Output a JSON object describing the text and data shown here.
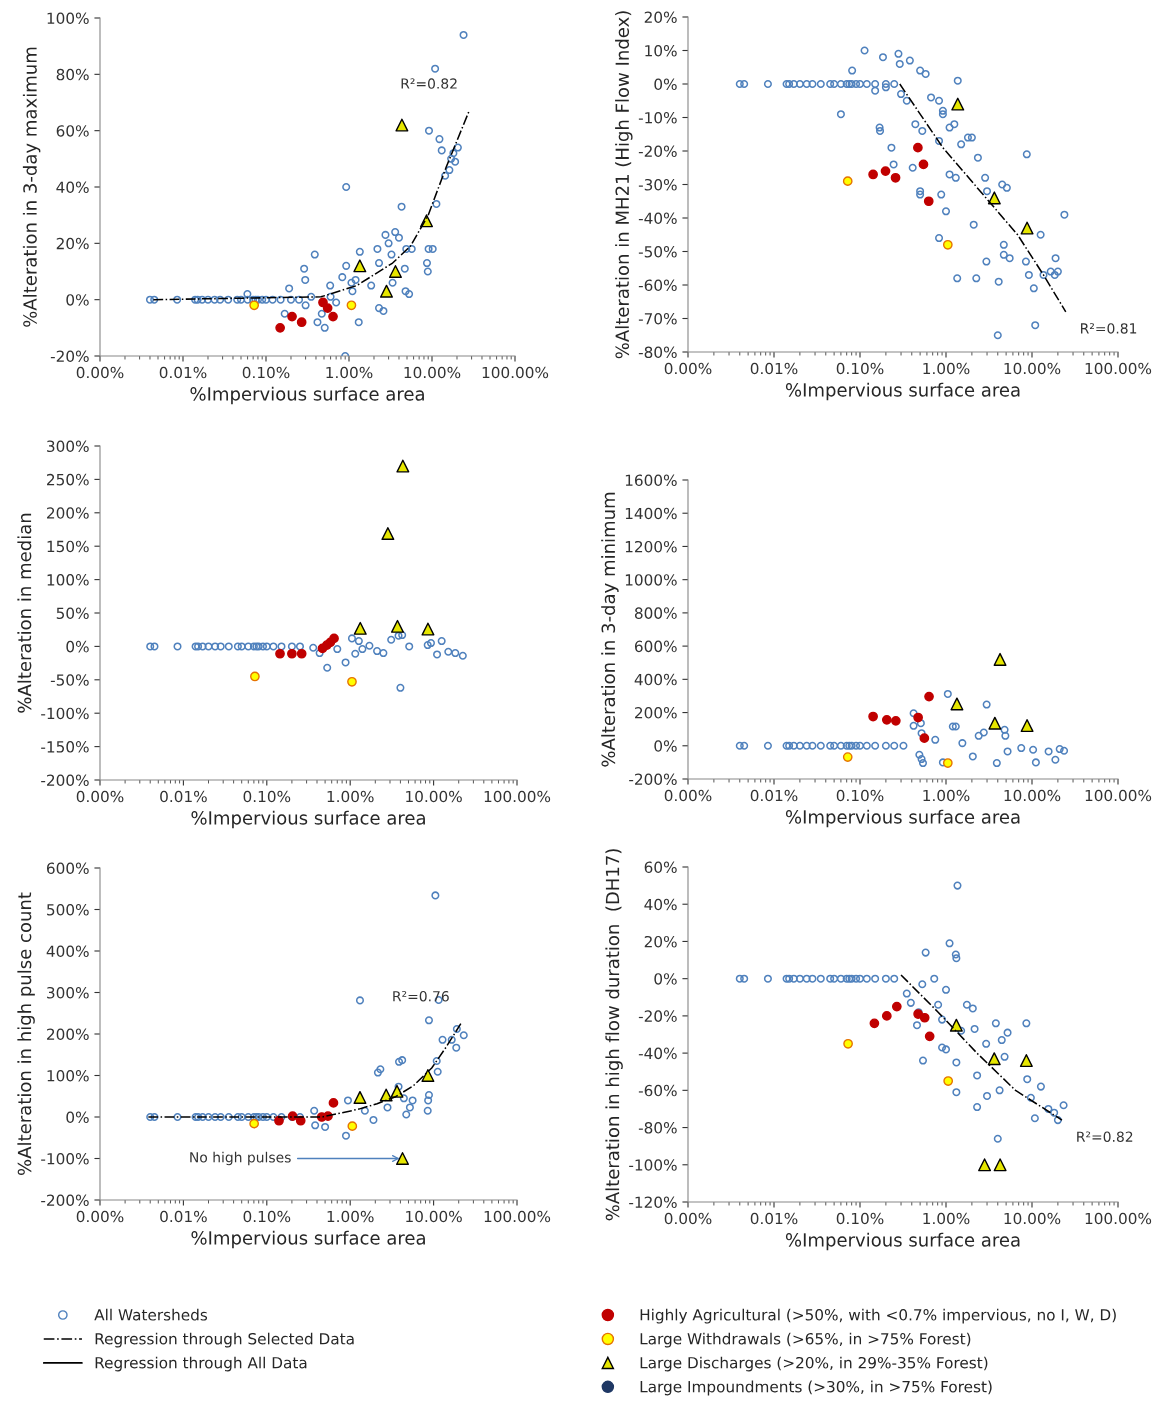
{
  "chart_data": [
    {
      "type": "scatter",
      "xlabel": "%Impervious surface area",
      "ylabel": "%Alteration in 3-day maximum",
      "log": "x",
      "legend": "bottom",
      "xlim": [
        0.001,
        100
      ],
      "xticks": [
        {
          "value": 0.001,
          "label": "0.00%"
        },
        {
          "value": 0.01,
          "label": "0.01%"
        },
        {
          "value": 0.1,
          "label": "0.10%"
        },
        {
          "value": 1,
          "label": "1.00%"
        },
        {
          "value": 10,
          "label": "10.00%"
        },
        {
          "value": 100,
          "label": "100.00%"
        }
      ],
      "ylim": [
        -20,
        100
      ],
      "yticks": [
        {
          "value": -20,
          "label": "-20%"
        },
        {
          "value": 0,
          "label": "0%"
        },
        {
          "value": 20,
          "label": "20%"
        },
        {
          "value": 40,
          "label": "40%"
        },
        {
          "value": 60,
          "label": "60%"
        },
        {
          "value": 80,
          "label": "80%"
        },
        {
          "value": 100,
          "label": "100%"
        }
      ],
      "annotations": [
        "R²=0.82"
      ],
      "series": [
        {
          "name": "All Watersheds",
          "marker": "circle",
          "color": "#4f81bd",
          "x": [
            0.004,
            0.0045,
            0.0085,
            0.014,
            0.015,
            0.017,
            0.02,
            0.024,
            0.028,
            0.035,
            0.045,
            0.05,
            0.06,
            0.07,
            0.075,
            0.08,
            0.09,
            0.1,
            0.12,
            0.15,
            0.2,
            0.25,
            0.0597,
            0.19,
            0.288,
            0.297,
            0.387,
            0.168,
            0.417,
            0.51,
            0.47,
            0.593,
            0.925,
            0.925,
            0.9,
            0.83,
            1.07,
            1.31,
            1.35,
            1.85,
            2.2,
            2.3,
            2.75,
            3.0,
            3.25,
            3.35,
            2.3,
            2.6,
            3.6,
            4.0,
            4.3,
            4.7,
            4.9,
            4.8,
            5.3,
            5.7,
            8.9,
            8.7,
            9.1,
            9.2,
            10.2,
            10.9,
            11.3,
            12.3,
            13.1,
            14.4,
            16.2,
            17,
            18.1,
            19,
            20.5,
            24,
            0.3,
            0.35,
            0.6,
            0.7,
            1.1,
            1.2
          ],
          "values": [
            0,
            0,
            0,
            0,
            0,
            0,
            0,
            0,
            0,
            0,
            0,
            0,
            0,
            0,
            0,
            0,
            0,
            0,
            0,
            0,
            0,
            0,
            2,
            4,
            11,
            7,
            16,
            -5,
            -8,
            -10,
            -5,
            5,
            40,
            12,
            -20,
            8,
            6,
            -8,
            17,
            5,
            18,
            13,
            23,
            20,
            16,
            6,
            -3,
            -4,
            24,
            22,
            33,
            11,
            18,
            3,
            2,
            18,
            10,
            13,
            18,
            60,
            18,
            82,
            34,
            57,
            53,
            44,
            46,
            50,
            52,
            49,
            54,
            94,
            -2,
            1,
            1,
            -1,
            3,
            7
          ]
        },
        {
          "name": "Regression through Selected Data",
          "type": "line",
          "line_style": "dashdot",
          "color": "#000000",
          "x": [
            0.0044,
            0.46,
            1.24,
            3.35,
            5.5,
            9.0,
            14.8,
            28
          ],
          "values": [
            0,
            1,
            5,
            13,
            19,
            30,
            47,
            67
          ]
        },
        {
          "name": "Regression through All Data",
          "type": "line",
          "line_style": "solid",
          "color": "#000000"
        },
        {
          "name": "Highly Agricultural (>50%, with <0.7% impervious, no I, W, D)",
          "marker": "circle",
          "color": "#c00000",
          "x": [
            0.148,
            0.206,
            0.269,
            0.486,
            0.553,
            0.642
          ],
          "values": [
            -10,
            -6,
            -8,
            -1,
            -3,
            -6
          ]
        },
        {
          "name": "Large Withdrawals (>65%, in >75% Forest)",
          "marker": "circle",
          "color": "#ffff00",
          "x": [
            0.072,
            1.07
          ],
          "values": [
            -2,
            -2
          ]
        },
        {
          "name": "Large Discharges (>20%, in 29%-35% Forest)",
          "marker": "triangle",
          "color": "#e6e600",
          "x": [
            1.35,
            4.34,
            2.83,
            3.63,
            8.59
          ],
          "values": [
            12,
            62,
            3,
            10,
            28
          ]
        },
        {
          "name": "Large Impoundments (>30%, in >75% Forest)",
          "marker": "circle",
          "color": "#1f3864"
        }
      ]
    },
    {
      "type": "scatter",
      "xlabel": "%Impervious surface area",
      "ylabel": "%Alteration in MH21 (High Flow Index)",
      "log": "x",
      "legend": "bottom",
      "xlim": [
        0.001,
        100
      ],
      "xticks": [
        {
          "value": 0.001,
          "label": "0.00%"
        },
        {
          "value": 0.01,
          "label": "0.01%"
        },
        {
          "value": 0.1,
          "label": "0.10%"
        },
        {
          "value": 1,
          "label": "1.00%"
        },
        {
          "value": 10,
          "label": "10.00%"
        },
        {
          "value": 100,
          "label": "100.00%"
        }
      ],
      "ylim": [
        -80,
        20
      ],
      "yticks": [
        {
          "value": -80,
          "label": "-80%"
        },
        {
          "value": -70,
          "label": "-70%"
        },
        {
          "value": -60,
          "label": "-60%"
        },
        {
          "value": -50,
          "label": "-50%"
        },
        {
          "value": -40,
          "label": "-40%"
        },
        {
          "value": -30,
          "label": "-30%"
        },
        {
          "value": -20,
          "label": "-20%"
        },
        {
          "value": -10,
          "label": "-10%"
        },
        {
          "value": 0,
          "label": "0%"
        },
        {
          "value": 10,
          "label": "10%"
        },
        {
          "value": 20,
          "label": "20%"
        }
      ],
      "annotations": [
        "R²=0.81"
      ],
      "series": [
        {
          "name": "All Watersheds",
          "marker": "circle",
          "color": "#4f81bd",
          "x": [
            0.004,
            0.0045,
            0.0085,
            0.014,
            0.015,
            0.017,
            0.02,
            0.024,
            0.028,
            0.035,
            0.045,
            0.05,
            0.06,
            0.07,
            0.075,
            0.08,
            0.09,
            0.1,
            0.12,
            0.15,
            0.2,
            0.25,
            0.06,
            0.081,
            0.113,
            0.185,
            0.169,
            0.171,
            0.232,
            0.246,
            0.28,
            0.29,
            0.38,
            0.5,
            0.58,
            0.44,
            0.41,
            0.5,
            0.5,
            0.53,
            0.67,
            0.83,
            0.92,
            0.92,
            0.83,
            0.88,
            0.83,
            1.0,
            1.1,
            1.1,
            1.25,
            1.3,
            1.37,
            1.35,
            1.5,
            1.8,
            2.0,
            2.1,
            2.25,
            2.35,
            2.85,
            2.95,
            3.0,
            4.1,
            4.0,
            4.5,
            4.7,
            5.1,
            4.7,
            5.5,
            8.7,
            8.5,
            9.2,
            10.5,
            10.9,
            12.6,
            13.6,
            16.5,
            18.4,
            18.8,
            20,
            23.8,
            0.15,
            0.2,
            0.3,
            0.35
          ],
          "values": [
            0,
            0,
            0,
            0,
            0,
            0,
            0,
            0,
            0,
            0,
            0,
            0,
            0,
            0,
            0,
            0,
            0,
            0,
            0,
            0,
            0,
            0,
            -9,
            4,
            10,
            8,
            -13,
            -14,
            -19,
            -24,
            9,
            6,
            7,
            4,
            3,
            -12,
            -25,
            -32,
            -33,
            -14,
            -4,
            -5,
            -8,
            -9,
            -17,
            -33,
            -46,
            -38,
            -13,
            -27,
            -12,
            -28,
            1,
            -58,
            -18,
            -16,
            -16,
            -42,
            -58,
            -22,
            -28,
            -53,
            -32,
            -59,
            -75,
            -30,
            -48,
            -31,
            -51,
            -52,
            -21,
            -53,
            -57,
            -61,
            -72,
            -45,
            -57,
            -56,
            -57,
            -52,
            -56,
            -39,
            -2,
            -1,
            -3,
            -5
          ]
        },
        {
          "name": "Regression through Selected Data",
          "type": "line",
          "line_style": "dashdot",
          "color": "#000000",
          "x": [
            0.29,
            0.92,
            2.5,
            6.8,
            13.6,
            24.7
          ],
          "values": [
            0,
            -19,
            -32,
            -45,
            -57,
            -68
          ]
        },
        {
          "name": "Highly Agricultural (>50%, with <0.7% impervious, no I, W, D)",
          "marker": "circle",
          "color": "#c00000",
          "x": [
            0.142,
            0.198,
            0.259,
            0.471,
            0.547,
            0.63
          ],
          "values": [
            -27,
            -26,
            -28,
            -19,
            -24,
            -35
          ]
        },
        {
          "name": "Large Withdrawals (>65%, in >75% Forest)",
          "marker": "circle",
          "color": "#ffff00",
          "x": [
            0.072,
            1.05
          ],
          "values": [
            -29,
            -48
          ]
        },
        {
          "name": "Large Discharges (>20%, in 29%-35% Forest)",
          "marker": "triangle",
          "color": "#e6e600",
          "x": [
            1.37,
            3.65,
            8.77
          ],
          "values": [
            -6,
            -34,
            -43
          ]
        }
      ]
    },
    {
      "type": "scatter",
      "xlabel": "%Impervious surface area",
      "ylabel": "%Alteration in median",
      "log": "x",
      "legend": "bottom",
      "xlim": [
        0.001,
        100
      ],
      "xticks": [
        {
          "value": 0.001,
          "label": "0.00%"
        },
        {
          "value": 0.01,
          "label": "0.01%"
        },
        {
          "value": 0.1,
          "label": "0.10%"
        },
        {
          "value": 1,
          "label": "1.00%"
        },
        {
          "value": 10,
          "label": "10.00%"
        },
        {
          "value": 100,
          "label": "100.00%"
        }
      ],
      "ylim": [
        -200,
        300
      ],
      "yticks": [
        {
          "value": -200,
          "label": "-200%"
        },
        {
          "value": -150,
          "label": "-150%"
        },
        {
          "value": -100,
          "label": "-100%"
        },
        {
          "value": -50,
          "label": "-50%"
        },
        {
          "value": 0,
          "label": "0%"
        },
        {
          "value": 50,
          "label": "50%"
        },
        {
          "value": 100,
          "label": "100%"
        },
        {
          "value": 150,
          "label": "150%"
        },
        {
          "value": 200,
          "label": "200%"
        },
        {
          "value": 250,
          "label": "250%"
        },
        {
          "value": 300,
          "label": "300%"
        }
      ],
      "series": [
        {
          "name": "All Watersheds",
          "marker": "circle",
          "color": "#4f81bd",
          "x": [
            0.004,
            0.0045,
            0.0085,
            0.014,
            0.015,
            0.017,
            0.02,
            0.024,
            0.028,
            0.035,
            0.045,
            0.05,
            0.06,
            0.07,
            0.075,
            0.08,
            0.09,
            0.1,
            0.12,
            0.15,
            0.2,
            0.25,
            0.53,
            0.88,
            4.0,
            1.05,
            1.27,
            3.1,
            3.8,
            4.2,
            12.5,
            22.4,
            18.2,
            11,
            15,
            8.5,
            9.3,
            5.1,
            2.1,
            2.5,
            0.7,
            0.36,
            0.43,
            1.4,
            1.7,
            1.15
          ],
          "values": [
            0,
            0,
            0,
            0,
            0,
            0,
            0,
            0,
            0,
            0,
            0,
            0,
            0,
            0,
            0,
            0,
            0,
            0,
            0,
            0,
            0,
            0,
            -32,
            -24,
            -62,
            12,
            8,
            10,
            16,
            17,
            8,
            -14,
            -10,
            -12,
            -8,
            2,
            5,
            0,
            -7,
            -10,
            -4,
            -2,
            -10,
            -4,
            1,
            -11
          ]
        },
        {
          "name": "Highly Agricultural (>50%, with <0.7% impervious, no I, W, D)",
          "marker": "circle",
          "color": "#c00000",
          "x": [
            0.144,
            0.2,
            0.262,
            0.465,
            0.525,
            0.578,
            0.64
          ],
          "values": [
            -11,
            -11,
            -11,
            -3,
            2,
            6,
            12
          ]
        },
        {
          "name": "Large Withdrawals (>65%, in >75% Forest)",
          "marker": "circle",
          "color": "#ffff00",
          "x": [
            0.072,
            1.05
          ],
          "values": [
            -45,
            -53
          ]
        },
        {
          "name": "Large Discharges (>20%, in 29%-35% Forest)",
          "marker": "triangle",
          "color": "#e6e600",
          "x": [
            4.28,
            2.83,
            1.32,
            3.69,
            8.56
          ],
          "values": [
            270,
            169,
            27,
            30,
            26
          ]
        }
      ]
    },
    {
      "type": "scatter",
      "xlabel": "%Impervious surface area",
      "ylabel": "%Alteration in 3-day minimum",
      "log": "x",
      "legend": "bottom",
      "xlim": [
        0.001,
        100
      ],
      "xticks": [
        {
          "value": 0.001,
          "label": "0.00%"
        },
        {
          "value": 0.01,
          "label": "0.01%"
        },
        {
          "value": 0.1,
          "label": "0.10%"
        },
        {
          "value": 1,
          "label": "1.00%"
        },
        {
          "value": 10,
          "label": "10.00%"
        },
        {
          "value": 100,
          "label": "100.00%"
        }
      ],
      "ylim": [
        -200,
        1600
      ],
      "yticks": [
        {
          "value": -200,
          "label": "-200%"
        },
        {
          "value": 0,
          "label": "0%"
        },
        {
          "value": 200,
          "label": "200%"
        },
        {
          "value": 400,
          "label": "400%"
        },
        {
          "value": 600,
          "label": "600%"
        },
        {
          "value": 800,
          "label": "800%"
        },
        {
          "value": 1000,
          "label": "1000%"
        },
        {
          "value": 1200,
          "label": "1200%"
        },
        {
          "value": 1400,
          "label": "1400%"
        },
        {
          "value": 1600,
          "label": "1600%"
        }
      ],
      "series": [
        {
          "name": "All Watersheds",
          "marker": "circle",
          "color": "#4f81bd",
          "x": [
            0.004,
            0.0045,
            0.0085,
            0.014,
            0.015,
            0.017,
            0.02,
            0.024,
            0.028,
            0.035,
            0.045,
            0.05,
            0.06,
            0.07,
            0.075,
            0.08,
            0.09,
            0.1,
            0.12,
            0.15,
            0.2,
            0.25,
            0.42,
            0.42,
            0.51,
            0.52,
            0.49,
            0.54,
            0.52,
            1.05,
            1.2,
            1.3,
            2.4,
            2.75,
            2.97,
            2.05,
            3.9,
            4.8,
            4.9,
            5.2,
            0.92,
            11.1,
            18.7,
            23.6,
            15.6,
            10.3,
            21,
            0.75,
            0.32,
            1.55,
            7.5
          ],
          "values": [
            0,
            0,
            0,
            0,
            0,
            0,
            0,
            0,
            0,
            0,
            0,
            0,
            0,
            0,
            0,
            0,
            0,
            0,
            0,
            0,
            0,
            0,
            196,
            120,
            136,
            76,
            -54,
            -104,
            -80,
            312,
            116,
            116,
            60,
            80,
            248,
            -64,
            -104,
            96,
            60,
            -34,
            -100,
            -100,
            -84,
            -30,
            -34,
            -24,
            -20,
            36,
            0,
            16,
            -14
          ]
        },
        {
          "name": "Highly Agricultural (>50%, with <0.7% impervious, no I, W, D)",
          "marker": "circle",
          "color": "#c00000",
          "x": [
            0.142,
            0.205,
            0.261,
            0.474,
            0.635,
            0.56
          ],
          "values": [
            176,
            156,
            150,
            170,
            296,
            46
          ]
        },
        {
          "name": "Large Withdrawals (>65%, in >75% Forest)",
          "marker": "circle",
          "color": "#ffff00",
          "x": [
            0.072,
            1.05
          ],
          "values": [
            -68,
            -104
          ]
        },
        {
          "name": "Large Discharges (>20%, in 29%-35% Forest)",
          "marker": "triangle",
          "color": "#e6e600",
          "x": [
            4.25,
            1.34,
            3.7,
            8.77
          ],
          "values": [
            520,
            252,
            136,
            122
          ]
        }
      ]
    },
    {
      "type": "scatter",
      "xlabel": "%Impervious surface area",
      "ylabel": "%Alteration in high pulse count",
      "log": "x",
      "legend": "bottom",
      "xlim": [
        0.001,
        100
      ],
      "xticks": [
        {
          "value": 0.001,
          "label": "0.00%"
        },
        {
          "value": 0.01,
          "label": "0.01%"
        },
        {
          "value": 0.1,
          "label": "0.10%"
        },
        {
          "value": 1,
          "label": "1.00%"
        },
        {
          "value": 10,
          "label": "10.00%"
        },
        {
          "value": 100,
          "label": "100.00%"
        }
      ],
      "ylim": [
        -200,
        600
      ],
      "yticks": [
        {
          "value": -200,
          "label": "-200%"
        },
        {
          "value": -100,
          "label": "-100%"
        },
        {
          "value": 0,
          "label": "0%"
        },
        {
          "value": 100,
          "label": "100%"
        },
        {
          "value": 200,
          "label": "200%"
        },
        {
          "value": 300,
          "label": "300%"
        },
        {
          "value": 400,
          "label": "400%"
        },
        {
          "value": 500,
          "label": "500%"
        },
        {
          "value": 600,
          "label": "600%"
        }
      ],
      "annotations": [
        "R²=0.76",
        {
          "text": "No high pulses",
          "x": 4.24,
          "y": -100
        }
      ],
      "series": [
        {
          "name": "All Watersheds",
          "marker": "circle",
          "color": "#4f81bd",
          "x": [
            0.004,
            0.0045,
            0.0085,
            0.014,
            0.015,
            0.017,
            0.02,
            0.024,
            0.028,
            0.035,
            0.045,
            0.05,
            0.06,
            0.07,
            0.075,
            0.08,
            0.09,
            0.1,
            0.12,
            0.15,
            0.2,
            0.25,
            0.37,
            1.31,
            2.15,
            2.3,
            3.85,
            4.2,
            3.8,
            4.4,
            4.7,
            5.2,
            5.6,
            8.5,
            8.6,
            8.8,
            8.8,
            10.5,
            11.5,
            10.9,
            11.2,
            12.8,
            16.5,
            19,
            18.7,
            23,
            0.89,
            0.38,
            0.5,
            0.94,
            1.5,
            1.9,
            2.8
          ],
          "values": [
            0,
            0,
            0,
            0,
            0,
            0,
            0,
            0,
            0,
            0,
            0,
            0,
            0,
            0,
            0,
            0,
            0,
            0,
            0,
            0,
            0,
            0,
            15,
            281,
            107,
            115,
            133,
            137,
            73,
            45,
            6,
            23,
            40,
            15,
            40,
            53,
            233,
            534,
            282,
            135,
            109,
            186,
            186,
            212,
            167,
            197,
            -45,
            -20,
            -24,
            40,
            15,
            -7,
            23
          ]
        },
        {
          "name": "Regression through Selected Data",
          "type": "line",
          "line_style": "dashdot",
          "color": "#000000",
          "x": [
            0.0038,
            0.46,
            1.27,
            2.1,
            3.5,
            5.7,
            9.5,
            14.2,
            21.2
          ],
          "values": [
            0,
            0,
            19,
            32,
            49,
            75,
            118,
            169,
            225
          ]
        },
        {
          "name": "Highly Agricultural (>50%, with <0.7% impervious, no I, W, D)",
          "marker": "circle",
          "color": "#c00000",
          "x": [
            0.14,
            0.204,
            0.255,
            0.456,
            0.541,
            0.63
          ],
          "values": [
            -9,
            2,
            -9,
            0,
            2,
            34
          ]
        },
        {
          "name": "Large Withdrawals (>65%, in >75% Forest)",
          "marker": "circle",
          "color": "#ffff00",
          "x": [
            0.0705,
            1.06
          ],
          "values": [
            -16,
            -22
          ]
        },
        {
          "name": "Large Discharges (>20%, in 29%-35% Forest)",
          "marker": "triangle",
          "color": "#e6e600",
          "x": [
            1.31,
            2.7,
            3.64,
            8.55,
            4.24
          ],
          "values": [
            47,
            53,
            62,
            100,
            -100
          ]
        }
      ]
    },
    {
      "type": "scatter",
      "xlabel": "%Impervious surface area",
      "ylabel": "%Alteration in high flow duration  (DH17)",
      "log": "x",
      "legend": "bottom",
      "xlim": [
        0.001,
        100
      ],
      "xticks": [
        {
          "value": 0.001,
          "label": "0.00%"
        },
        {
          "value": 0.01,
          "label": "0.01%"
        },
        {
          "value": 0.1,
          "label": "0.10%"
        },
        {
          "value": 1,
          "label": "1.00%"
        },
        {
          "value": 10,
          "label": "10.00%"
        },
        {
          "value": 100,
          "label": "100.00%"
        }
      ],
      "ylim": [
        -120,
        60
      ],
      "yticks": [
        {
          "value": -120,
          "label": "-120%"
        },
        {
          "value": -100,
          "label": "-100%"
        },
        {
          "value": -80,
          "label": "-80%"
        },
        {
          "value": -60,
          "label": "-60%"
        },
        {
          "value": -40,
          "label": "-40%"
        },
        {
          "value": -20,
          "label": "-20%"
        },
        {
          "value": 0,
          "label": "0%"
        },
        {
          "value": 20,
          "label": "20%"
        },
        {
          "value": 40,
          "label": "40%"
        },
        {
          "value": 60,
          "label": "60%"
        }
      ],
      "annotations": [
        "R²=0.82"
      ],
      "series": [
        {
          "name": "All Watersheds",
          "marker": "circle",
          "color": "#4f81bd",
          "x": [
            0.004,
            0.0045,
            0.0085,
            0.014,
            0.015,
            0.017,
            0.02,
            0.024,
            0.028,
            0.035,
            0.045,
            0.05,
            0.06,
            0.07,
            0.075,
            0.08,
            0.09,
            0.1,
            0.12,
            0.15,
            0.2,
            0.25,
            0.58,
            1.1,
            1.3,
            1.32,
            1.36,
            0.53,
            0.48,
            0.54,
            0.46,
            0.9,
            1.0,
            1.32,
            1.32,
            0.81,
            0.73,
            1.0,
            1.5,
            1.75,
            2.05,
            2.15,
            2.3,
            2.3,
            2.93,
            3.0,
            3.8,
            4.0,
            4.45,
            5.2,
            4.8,
            4.2,
            8.6,
            8.8,
            9.7,
            10.8,
            12.7,
            15.5,
            18.1,
            20,
            23.3,
            0.35,
            0.39,
            0.9
          ],
          "values": [
            0,
            0,
            0,
            0,
            0,
            0,
            0,
            0,
            0,
            0,
            0,
            0,
            0,
            0,
            0,
            0,
            0,
            0,
            0,
            0,
            0,
            0,
            14,
            19,
            13,
            11,
            50,
            -3,
            -18,
            -44,
            -25,
            -37,
            -38,
            -61,
            -45,
            -14,
            0,
            -6,
            -28,
            -14,
            -16,
            -27,
            -52,
            -69,
            -35,
            -63,
            -24,
            -86,
            -33,
            -29,
            -42,
            -60,
            -24,
            -54,
            -64,
            -75,
            -58,
            -70,
            -72,
            -76,
            -68,
            -8,
            -13,
            -22
          ]
        },
        {
          "name": "Regression through Selected Data",
          "type": "line",
          "line_style": "dashdot",
          "color": "#000000",
          "x": [
            0.3,
            0.81,
            2.29,
            6.43,
            22.3
          ],
          "values": [
            2,
            -18,
            -40,
            -60,
            -76
          ]
        },
        {
          "name": "Highly Agricultural (>50%, with <0.7% impervious, no I, W, D)",
          "marker": "circle",
          "color": "#c00000",
          "x": [
            0.147,
            0.205,
            0.268,
            0.474,
            0.565,
            0.646
          ],
          "values": [
            -24,
            -20,
            -15,
            -19,
            -21,
            -31
          ]
        },
        {
          "name": "Large Withdrawals (>65%, in >75% Forest)",
          "marker": "circle",
          "color": "#ffff00",
          "x": [
            0.0727,
            1.06
          ],
          "values": [
            -35,
            -55
          ]
        },
        {
          "name": "Large Discharges (>20%, in 29%-35% Forest)",
          "marker": "triangle",
          "color": "#e6e600",
          "x": [
            1.32,
            3.64,
            8.6,
            2.81,
            4.26
          ],
          "values": [
            -25,
            -43,
            -44,
            -100,
            -100
          ]
        }
      ]
    }
  ]
}
